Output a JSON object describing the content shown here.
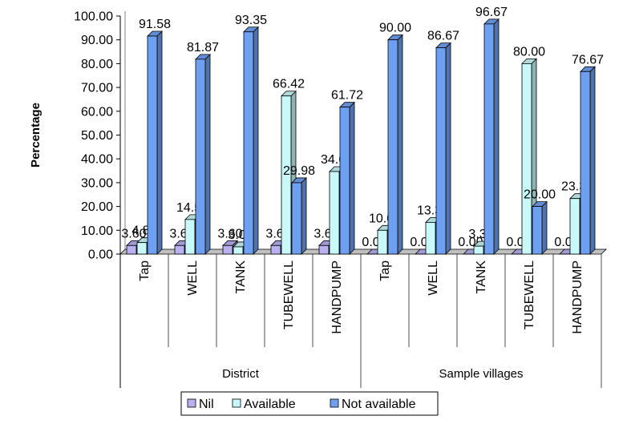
{
  "chart_data": {
    "type": "bar",
    "ylabel": "Percentage",
    "ylim": [
      0,
      100
    ],
    "yticks": [
      "0.00",
      "10.00",
      "20.00",
      "30.00",
      "40.00",
      "50.00",
      "60.00",
      "70.00",
      "80.00",
      "90.00",
      "100.00"
    ],
    "categories": [
      "Tap",
      "WELL",
      "TANK",
      "TUBEWELL",
      "HANDPUMP",
      "Tap",
      "WELL",
      "TANK",
      "TUBEWELL",
      "HANDPUMP"
    ],
    "groups": [
      {
        "label": "District",
        "count": 5
      },
      {
        "label": "Sample villages",
        "count": 5
      }
    ],
    "series": [
      {
        "name": "Nil",
        "color": "#b8b0f0",
        "values": [
          3.6,
          3.6,
          3.6,
          3.6,
          3.6,
          0.0,
          0.0,
          0.0,
          0.0,
          0.0
        ],
        "labels": [
          "3.60",
          "3.60",
          "3.60",
          "3.60",
          "3.60",
          "0.00",
          "0.00",
          "0.00",
          "0.00",
          "0.00"
        ]
      },
      {
        "name": "Available",
        "color": "#c8f8f8",
        "values": [
          4.82,
          14.53,
          3.05,
          66.42,
          34.68,
          10.0,
          13.33,
          3.33,
          80.0,
          23.33
        ],
        "labels": [
          "4.82",
          "14.53",
          "3.05",
          "66.42",
          "34.68",
          "10.00",
          "13.33",
          "3.33",
          "80.00",
          "23.33"
        ]
      },
      {
        "name": "Not available",
        "color": "#6f9ff0",
        "values": [
          91.58,
          81.87,
          93.35,
          29.98,
          61.72,
          90.0,
          86.67,
          96.67,
          20.0,
          76.67
        ],
        "labels": [
          "91.58",
          "81.87",
          "93.35",
          "29.98",
          "61.72",
          "90.00",
          "86.67",
          "96.67",
          "20.00",
          "76.67"
        ]
      }
    ],
    "legend_position": "bottom",
    "grid": false,
    "style": "3d-bar"
  }
}
